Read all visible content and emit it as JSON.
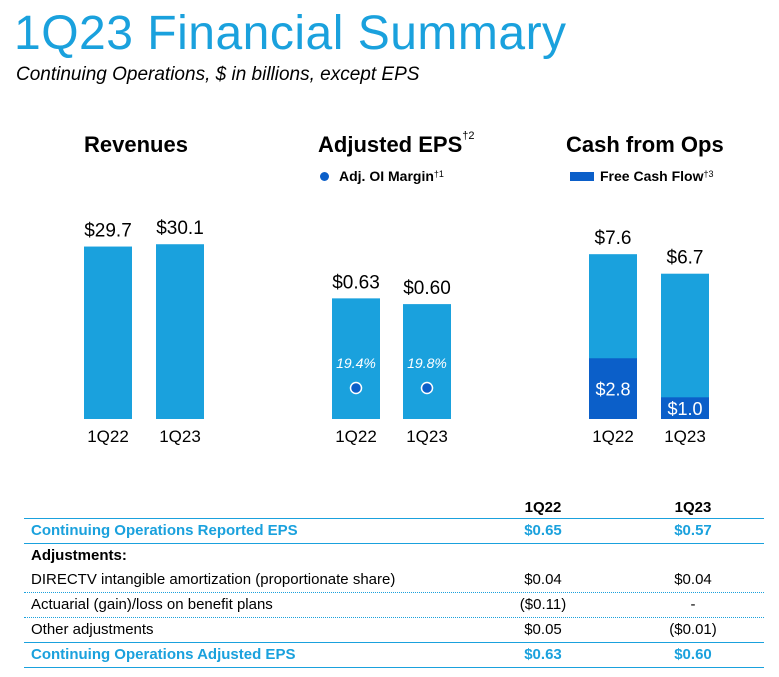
{
  "header": {
    "title": "1Q23 Financial Summary",
    "subtitle": "Continuing Operations, $ in billions, except EPS"
  },
  "colors": {
    "accent": "#1aa1dd",
    "dark": "#0b5fc9"
  },
  "charts": {
    "revenues": {
      "title": "Revenues"
    },
    "eps": {
      "title": "Adjusted EPS",
      "title_sup": "†2",
      "legend": "Adj. OI Margin",
      "legend_sup": "†1"
    },
    "cash": {
      "title": "Cash from Ops",
      "legend": "Free Cash Flow",
      "legend_sup": "†3"
    }
  },
  "chart_data": [
    {
      "type": "bar",
      "title": "Revenues",
      "categories": [
        "1Q22",
        "1Q23"
      ],
      "values": [
        29.7,
        30.1
      ],
      "labels": [
        "$29.7",
        "$30.1"
      ],
      "ylim": [
        0,
        31
      ]
    },
    {
      "type": "bar",
      "title": "Adjusted EPS",
      "categories": [
        "1Q22",
        "1Q23"
      ],
      "values": [
        0.63,
        0.6
      ],
      "labels": [
        "$0.63",
        "$0.60"
      ],
      "ylim": [
        0,
        0.94
      ],
      "overlay": {
        "name": "Adj. OI Margin",
        "values": [
          19.4,
          19.8
        ],
        "labels": [
          "19.4%",
          "19.8%"
        ]
      }
    },
    {
      "type": "bar",
      "title": "Cash from Ops",
      "categories": [
        "1Q22",
        "1Q23"
      ],
      "series": [
        {
          "name": "Cash from Ops",
          "values": [
            7.6,
            6.7
          ],
          "labels": [
            "$7.6",
            "$6.7"
          ]
        },
        {
          "name": "Free Cash Flow",
          "values": [
            2.8,
            1.0
          ],
          "labels": [
            "$2.8",
            "$1.0"
          ]
        }
      ],
      "ylim": [
        0,
        8.3
      ]
    }
  ],
  "table": {
    "columns": [
      "1Q22",
      "1Q23"
    ],
    "reported": {
      "label": "Continuing Operations Reported EPS",
      "values": [
        "$0.65",
        "$0.57"
      ]
    },
    "adjustments_label": "Adjustments:",
    "rows": [
      {
        "label": "DIRECTV intangible amortization (proportionate share)",
        "values": [
          "$0.04",
          "$0.04"
        ]
      },
      {
        "label": "Actuarial (gain)/loss on benefit plans",
        "values": [
          "($0.11)",
          "-"
        ]
      },
      {
        "label": "Other adjustments",
        "values": [
          "$0.05",
          "($0.01)"
        ]
      }
    ],
    "adjusted": {
      "label": "Continuing Operations Adjusted EPS",
      "values": [
        "$0.63",
        "$0.60"
      ]
    }
  }
}
